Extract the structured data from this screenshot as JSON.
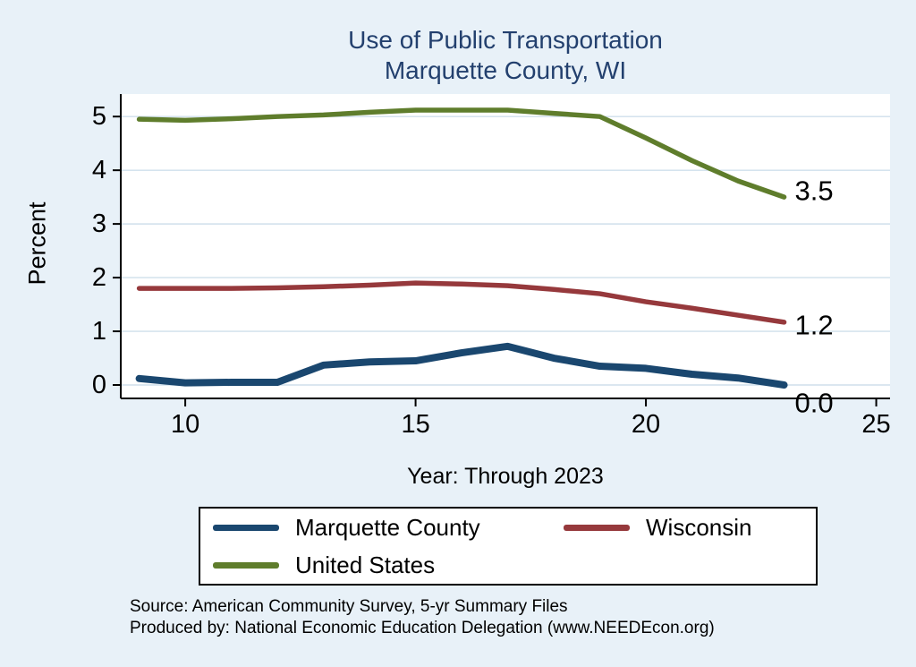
{
  "title": {
    "line1": "Use of Public Transportation",
    "line2": "Marquette County, WI"
  },
  "chart_data": {
    "type": "line",
    "title": "Use of Public Transportation - Marquette County, WI",
    "xlabel": "Year: Through 2023",
    "ylabel": "Percent",
    "xlim": [
      8.6,
      25.3
    ],
    "ylim": [
      -0.25,
      5.42
    ],
    "x_ticks": [
      10,
      15,
      20,
      25
    ],
    "y_ticks": [
      0,
      1,
      2,
      3,
      4,
      5
    ],
    "grid": true,
    "legend_position": "bottom",
    "x": [
      9,
      10,
      11,
      12,
      13,
      14,
      15,
      16,
      17,
      18,
      19,
      20,
      21,
      22,
      23
    ],
    "series": [
      {
        "name": "Marquette County",
        "color": "#1a476f",
        "end_label": "0.0",
        "values": [
          0.12,
          0.04,
          0.05,
          0.05,
          0.37,
          0.43,
          0.45,
          0.6,
          0.72,
          0.5,
          0.35,
          0.31,
          0.2,
          0.13,
          0.0
        ]
      },
      {
        "name": "Wisconsin",
        "color": "#96393c",
        "end_label": "1.2",
        "values": [
          1.8,
          1.8,
          1.8,
          1.81,
          1.83,
          1.86,
          1.9,
          1.88,
          1.85,
          1.78,
          1.7,
          1.55,
          1.43,
          1.3,
          1.17
        ]
      },
      {
        "name": "United States",
        "color": "#5f7d2c",
        "end_label": "3.5",
        "values": [
          4.95,
          4.93,
          4.96,
          5.0,
          5.03,
          5.08,
          5.12,
          5.12,
          5.12,
          5.06,
          5.0,
          4.6,
          4.18,
          3.8,
          3.5
        ]
      }
    ]
  },
  "legend": {
    "entries": [
      "Marquette County",
      "Wisconsin",
      "United States"
    ]
  },
  "footer": {
    "line1": "Source: American Community Survey, 5-yr Summary Files",
    "line2": "Produced by: National Economic Education Delegation (www.NEEDEcon.org)"
  }
}
